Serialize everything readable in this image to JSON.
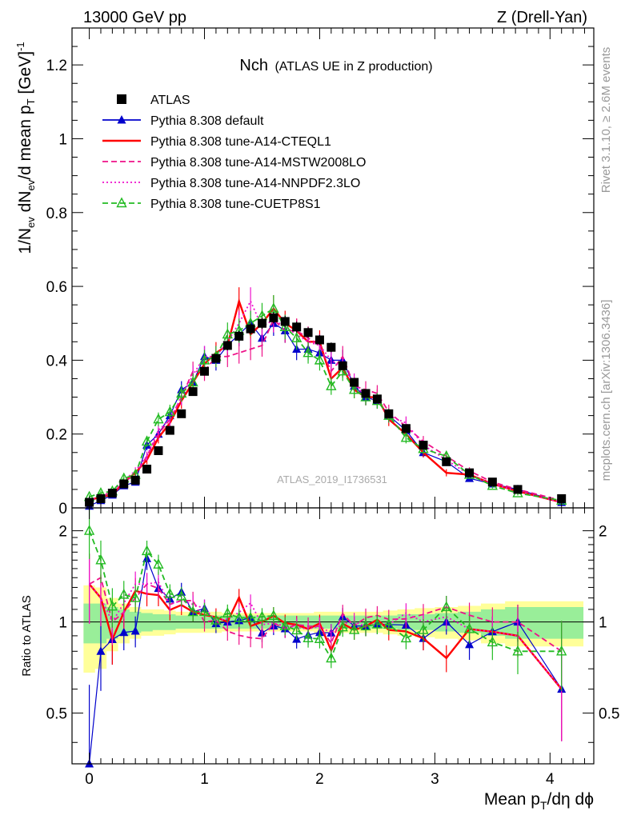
{
  "header": {
    "left": "13000 GeV pp",
    "right": "Z (Drell-Yan)"
  },
  "side_text": {
    "rivet": "Rivet 3.1.10, ≥ 2.6M events",
    "mcplots": "mcplots.cern.ch [arXiv:1306.3436]"
  },
  "chart_data": {
    "type": "scatter",
    "title_main": "Nch",
    "title_sub": "(ATLAS UE in Z production)",
    "analysis_label": "ATLAS_2019_I1736531",
    "ylabel_parts": [
      "1/N",
      "ev",
      " dN",
      "ev",
      "/d mean p",
      "T",
      " [GeV]",
      "-1"
    ],
    "xlabel_parts": [
      "Mean p",
      "T",
      "/dη dϕ"
    ],
    "ratio_ylabel": "Ratio to ATLAS",
    "xlim": [
      -0.15,
      4.38
    ],
    "ylim": [
      0,
      1.3
    ],
    "ratio_ylim": [
      0.34,
      2.38
    ],
    "x_ticks": [
      0,
      1,
      2,
      3,
      4
    ],
    "x_tick_labels": [
      "0",
      "1",
      "2",
      "3",
      "4"
    ],
    "y_ticks": [
      0,
      0.2,
      0.4,
      0.6,
      0.8,
      1,
      1.2
    ],
    "y_tick_labels": [
      "0",
      "0.2",
      "0.4",
      "0.6",
      "0.8",
      "1",
      "1.2"
    ],
    "ratio_ticks": [
      0.5,
      1,
      2
    ],
    "ratio_tick_labels": [
      "0.5",
      "1",
      "2"
    ],
    "x": [
      0.0,
      0.1,
      0.2,
      0.3,
      0.4,
      0.5,
      0.6,
      0.7,
      0.8,
      0.9,
      1.0,
      1.1,
      1.2,
      1.3,
      1.4,
      1.5,
      1.6,
      1.7,
      1.8,
      1.9,
      2.0,
      2.1,
      2.2,
      2.3,
      2.4,
      2.5,
      2.6,
      2.75,
      2.9,
      3.1,
      3.3,
      3.5,
      3.72,
      4.1
    ],
    "series": [
      {
        "name": "ATLAS",
        "values": [
          0.015,
          0.025,
          0.04,
          0.065,
          0.075,
          0.105,
          0.155,
          0.21,
          0.255,
          0.315,
          0.37,
          0.405,
          0.44,
          0.465,
          0.485,
          0.5,
          0.515,
          0.505,
          0.49,
          0.475,
          0.455,
          0.435,
          0.385,
          0.34,
          0.31,
          0.295,
          0.255,
          0.215,
          0.17,
          0.125,
          0.095,
          0.07,
          0.05,
          0.025
        ],
        "color": "#000000",
        "marker": "square",
        "line": "none"
      },
      {
        "name": "Pythia 8.308 default",
        "values": [
          0.005,
          0.02,
          0.035,
          0.06,
          0.07,
          0.17,
          0.2,
          0.25,
          0.32,
          0.34,
          0.41,
          0.4,
          0.44,
          0.47,
          0.5,
          0.46,
          0.5,
          0.48,
          0.43,
          0.43,
          0.42,
          0.4,
          0.4,
          0.33,
          0.3,
          0.29,
          0.25,
          0.21,
          0.15,
          0.125,
          0.08,
          0.065,
          0.05,
          0.015
        ],
        "color": "#0000cc",
        "marker": "triangle-filled",
        "line": "solid"
      },
      {
        "name": "Pythia 8.308 tune-A14-CTEQL1",
        "values": [
          0.02,
          0.03,
          0.035,
          0.07,
          0.095,
          0.13,
          0.19,
          0.23,
          0.29,
          0.34,
          0.39,
          0.42,
          0.44,
          0.56,
          0.47,
          0.5,
          0.54,
          0.5,
          0.48,
          0.45,
          0.45,
          0.35,
          0.38,
          0.32,
          0.3,
          0.3,
          0.24,
          0.2,
          0.15,
          0.095,
          0.09,
          0.065,
          0.045,
          0.015
        ],
        "color": "#ff0000",
        "marker": "none",
        "line": "solid"
      },
      {
        "name": "Pythia 8.308 tune-A14-MSTW2008LO",
        "values": [
          0.02,
          0.035,
          0.04,
          0.07,
          0.09,
          0.14,
          0.2,
          0.24,
          0.3,
          0.37,
          0.37,
          0.41,
          0.41,
          0.42,
          0.43,
          0.44,
          0.51,
          0.48,
          0.48,
          0.46,
          0.44,
          0.37,
          0.41,
          0.33,
          0.32,
          0.31,
          0.26,
          0.22,
          0.18,
          0.14,
          0.1,
          0.07,
          0.05,
          0.02
        ],
        "color": "#ee1188",
        "marker": "none",
        "line": "dashed"
      },
      {
        "name": "Pythia 8.308 tune-A14-NNPDF2.3LO",
        "values": [
          0.02,
          0.03,
          0.04,
          0.075,
          0.1,
          0.14,
          0.21,
          0.24,
          0.3,
          0.36,
          0.41,
          0.41,
          0.45,
          0.5,
          0.56,
          0.49,
          0.51,
          0.49,
          0.47,
          0.45,
          0.44,
          0.4,
          0.38,
          0.34,
          0.3,
          0.29,
          0.25,
          0.23,
          0.17,
          0.13,
          0.09,
          0.065,
          0.045,
          0.015
        ],
        "color": "#ee11cc",
        "marker": "none",
        "line": "dotted"
      },
      {
        "name": "Pythia 8.308 tune-CUETP8S1",
        "values": [
          0.03,
          0.04,
          0.045,
          0.08,
          0.09,
          0.18,
          0.24,
          0.26,
          0.31,
          0.34,
          0.4,
          0.41,
          0.47,
          0.48,
          0.5,
          0.52,
          0.54,
          0.49,
          0.46,
          0.42,
          0.4,
          0.33,
          0.37,
          0.32,
          0.3,
          0.29,
          0.25,
          0.19,
          0.16,
          0.14,
          0.09,
          0.06,
          0.04,
          0.02
        ],
        "color": "#22bb22",
        "marker": "triangle-open",
        "line": "dashed"
      }
    ],
    "ratio_band_inner": [
      0.15,
      0.15,
      0.12,
      0.1,
      0.08,
      0.07,
      0.06,
      0.06,
      0.05,
      0.05,
      0.05,
      0.05,
      0.05,
      0.05,
      0.05,
      0.05,
      0.05,
      0.05,
      0.05,
      0.05,
      0.05,
      0.05,
      0.05,
      0.05,
      0.05,
      0.05,
      0.05,
      0.06,
      0.06,
      0.07,
      0.08,
      0.1,
      0.12,
      0.12
    ],
    "ratio_band_outer": [
      0.32,
      0.3,
      0.2,
      0.15,
      0.12,
      0.1,
      0.1,
      0.09,
      0.08,
      0.08,
      0.08,
      0.08,
      0.07,
      0.07,
      0.07,
      0.07,
      0.07,
      0.07,
      0.07,
      0.07,
      0.08,
      0.08,
      0.08,
      0.08,
      0.08,
      0.08,
      0.09,
      0.1,
      0.11,
      0.12,
      0.13,
      0.15,
      0.17,
      0.17
    ]
  }
}
